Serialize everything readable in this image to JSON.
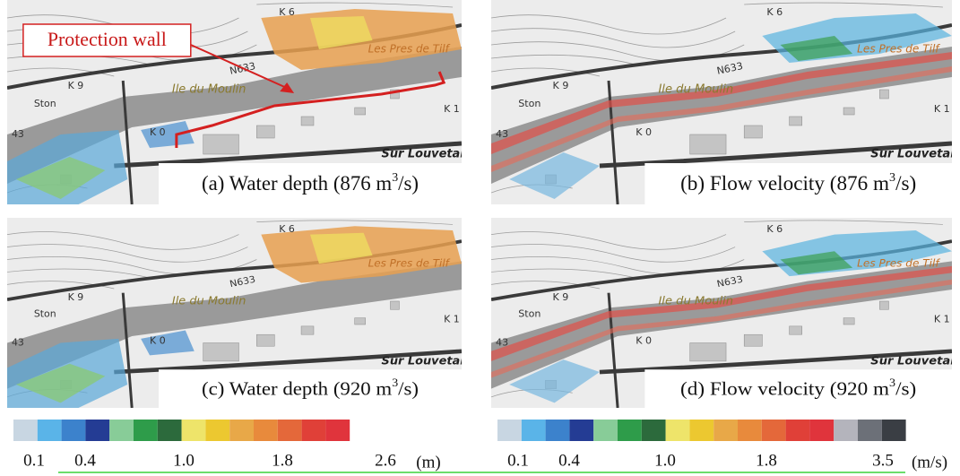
{
  "annotation": "Protection wall",
  "map_labels": [
    "K 6",
    "N633",
    "Les Pres de Tilf",
    "Ile du Moulin",
    "K 9",
    "Ston",
    "K 1",
    "K 0",
    "43",
    "Sur Louvetai"
  ],
  "panels": [
    {
      "kind": "depth",
      "caption": {
        "text": "(a) Water depth (876 m",
        "sup": "3",
        "tail": "/s)"
      }
    },
    {
      "kind": "velocity",
      "caption": {
        "text": "(b) Flow velocity (876 m",
        "sup": "3",
        "tail": "/s)"
      }
    },
    {
      "kind": "depth",
      "caption": {
        "text": "(c) Water depth (920 m",
        "sup": "3",
        "tail": "/s)"
      }
    },
    {
      "kind": "velocity",
      "caption": {
        "text": "(d) Flow velocity (920 m",
        "sup": "3",
        "tail": "/s)"
      }
    }
  ],
  "colorbars": [
    {
      "colors": [
        "#c8d6e2",
        "#5ab4e8",
        "#3c82cc",
        "#243c94",
        "#88cc98",
        "#2e9c4a",
        "#2c6a3c",
        "#eee46a",
        "#ecc830",
        "#e8a848",
        "#e88a3c",
        "#e4683a",
        "#e04038",
        "#e0343c"
      ],
      "ticks": [
        "0.1",
        "0.4",
        "1.0",
        "1.8",
        "2.6"
      ],
      "unit": "(m)"
    },
    {
      "colors": [
        "#c8d6e2",
        "#5ab4e8",
        "#3c82cc",
        "#243c94",
        "#88cc98",
        "#2e9c4a",
        "#2c6a3c",
        "#eee46a",
        "#ecc830",
        "#e8a848",
        "#e88a3c",
        "#e4683a",
        "#e04038",
        "#e0343c",
        "#b4b4bc",
        "#6c7078",
        "#3a3e44"
      ],
      "ticks": [
        "0.1",
        "0.4",
        "1.0",
        "1.8",
        "3.5"
      ],
      "unit": "(m/s)"
    }
  ]
}
